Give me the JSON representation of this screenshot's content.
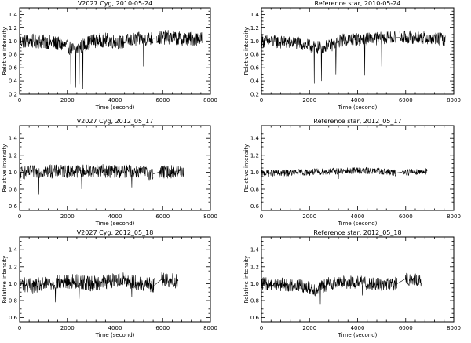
{
  "chart_data": [
    {
      "type": "line",
      "title": "V2027 Cyg, 2010-05-24",
      "xlabel": "Time (second)",
      "ylabel": "Relative intensity",
      "xlim": [
        0,
        8000
      ],
      "ylim": [
        0.2,
        1.5
      ],
      "x_ticks": [
        0,
        2000,
        4000,
        6000,
        8000
      ],
      "y_ticks": [
        0.2,
        0.4,
        0.6,
        0.8,
        1.0,
        1.2,
        1.4
      ],
      "series": [
        {
          "segments": [
            [
              0,
              5600
            ],
            [
              5750,
              7650
            ]
          ],
          "center": [
            [
              0,
              1.0
            ],
            [
              500,
              1.0
            ],
            [
              1000,
              0.99
            ],
            [
              1500,
              0.97
            ],
            [
              2000,
              0.92
            ],
            [
              2300,
              0.86
            ],
            [
              2500,
              0.9
            ],
            [
              3000,
              1.0
            ],
            [
              3600,
              1.02
            ],
            [
              4200,
              0.98
            ],
            [
              4800,
              1.02
            ],
            [
              5600,
              1.04
            ],
            [
              6200,
              1.06
            ],
            [
              6800,
              1.03
            ],
            [
              7650,
              1.04
            ]
          ],
          "amplitude": 0.11,
          "dips": [
            [
              1050,
              0.4
            ],
            [
              2150,
              0.35
            ],
            [
              2350,
              0.3
            ],
            [
              2500,
              0.35
            ],
            [
              2650,
              0.28
            ],
            [
              4350,
              0.58
            ],
            [
              5200,
              0.62
            ]
          ]
        }
      ]
    },
    {
      "type": "line",
      "title": "Reference star, 2010-05-24",
      "xlabel": "Time (second)",
      "ylabel": "Relative intensity",
      "xlim": [
        0,
        8000
      ],
      "ylim": [
        0.2,
        1.5
      ],
      "x_ticks": [
        0,
        2000,
        4000,
        6000,
        8000
      ],
      "y_ticks": [
        0.2,
        0.4,
        0.6,
        0.8,
        1.0,
        1.2,
        1.4
      ],
      "series": [
        {
          "segments": [
            [
              0,
              5600
            ],
            [
              5750,
              7650
            ]
          ],
          "center": [
            [
              0,
              1.0
            ],
            [
              1500,
              0.97
            ],
            [
              2300,
              0.9
            ],
            [
              2800,
              0.92
            ],
            [
              3400,
              1.02
            ],
            [
              4400,
              1.03
            ],
            [
              5500,
              1.05
            ],
            [
              6200,
              1.06
            ],
            [
              7000,
              1.04
            ],
            [
              7650,
              1.03
            ]
          ],
          "amplitude": 0.1,
          "dips": [
            [
              2200,
              0.36
            ],
            [
              2500,
              0.4
            ],
            [
              3100,
              0.5
            ],
            [
              4300,
              0.48
            ],
            [
              5000,
              0.62
            ]
          ]
        }
      ]
    },
    {
      "type": "line",
      "title": "V2027 Cyg, 2012_05_17",
      "xlabel": "Time (second)",
      "ylabel": "Relative intensity",
      "xlim": [
        0,
        8000
      ],
      "ylim": [
        0.55,
        1.55
      ],
      "x_ticks": [
        0,
        2000,
        4000,
        6000,
        8000
      ],
      "y_ticks": [
        0.6,
        0.8,
        1.0,
        1.2,
        1.4
      ],
      "series": [
        {
          "segments": [
            [
              0,
              5600
            ],
            [
              5850,
              6900
            ]
          ],
          "center": [
            [
              0,
              0.99
            ],
            [
              1000,
              1.01
            ],
            [
              2000,
              1.01
            ],
            [
              3000,
              1.02
            ],
            [
              4000,
              1.01
            ],
            [
              5000,
              1.01
            ],
            [
              5600,
              0.98
            ],
            [
              5850,
              1.0
            ],
            [
              6900,
              1.01
            ]
          ],
          "amplitude": 0.08,
          "dips": [
            [
              450,
              0.68
            ],
            [
              800,
              0.74
            ],
            [
              2600,
              0.8
            ],
            [
              4700,
              0.82
            ]
          ]
        }
      ]
    },
    {
      "type": "line",
      "title": "Reference star, 2012_05_17",
      "xlabel": "Time (second)",
      "ylabel": "Relative intensity",
      "xlim": [
        0,
        8000
      ],
      "ylim": [
        0.55,
        1.55
      ],
      "x_ticks": [
        0,
        2000,
        4000,
        6000,
        8000
      ],
      "y_ticks": [
        0.6,
        0.8,
        1.0,
        1.2,
        1.4
      ],
      "series": [
        {
          "segments": [
            [
              0,
              5600
            ],
            [
              5850,
              6900
            ]
          ],
          "center": [
            [
              0,
              0.99
            ],
            [
              1000,
              0.99
            ],
            [
              2000,
              1.0
            ],
            [
              3000,
              1.01
            ],
            [
              4000,
              1.02
            ],
            [
              5000,
              1.01
            ],
            [
              5600,
              0.99
            ],
            [
              5850,
              1.0
            ],
            [
              6900,
              1.01
            ]
          ],
          "amplitude": 0.04,
          "dips": [
            [
              900,
              0.89
            ],
            [
              3200,
              0.92
            ]
          ]
        }
      ]
    },
    {
      "type": "line",
      "title": "V2027 Cyg, 2012_05_18",
      "xlabel": "Time (second)",
      "ylabel": "Relative intensity",
      "xlim": [
        0,
        8000
      ],
      "ylim": [
        0.55,
        1.55
      ],
      "x_ticks": [
        0,
        2000,
        4000,
        6000,
        8000
      ],
      "y_ticks": [
        0.6,
        0.8,
        1.0,
        1.2,
        1.4
      ],
      "series": [
        {
          "segments": [
            [
              0,
              5650
            ],
            [
              5950,
              6650
            ]
          ],
          "center": [
            [
              0,
              1.0
            ],
            [
              600,
              0.97
            ],
            [
              1200,
              1.0
            ],
            [
              1800,
              1.02
            ],
            [
              2400,
              1.03
            ],
            [
              3000,
              1.0
            ],
            [
              3600,
              1.02
            ],
            [
              4300,
              1.06
            ],
            [
              5000,
              1.0
            ],
            [
              5650,
              0.98
            ],
            [
              5950,
              1.05
            ],
            [
              6650,
              1.03
            ]
          ],
          "amplitude": 0.09,
          "dips": [
            [
              1500,
              0.78
            ],
            [
              2500,
              0.82
            ],
            [
              4700,
              0.84
            ]
          ]
        }
      ]
    },
    {
      "type": "line",
      "title": "Reference star, 2012_05_18",
      "xlabel": "Time (second)",
      "ylabel": "Relative intensity",
      "xlim": [
        0,
        8000
      ],
      "ylim": [
        0.55,
        1.55
      ],
      "x_ticks": [
        0,
        2000,
        4000,
        6000,
        8000
      ],
      "y_ticks": [
        0.6,
        0.8,
        1.0,
        1.2,
        1.4
      ],
      "series": [
        {
          "segments": [
            [
              0,
              5650
            ],
            [
              5950,
              6650
            ]
          ],
          "center": [
            [
              0,
              1.0
            ],
            [
              800,
              0.99
            ],
            [
              1600,
              0.98
            ],
            [
              2300,
              0.93
            ],
            [
              2800,
              1.0
            ],
            [
              3500,
              1.02
            ],
            [
              4300,
              1.01
            ],
            [
              5000,
              0.99
            ],
            [
              5650,
              1.0
            ],
            [
              5950,
              1.05
            ],
            [
              6650,
              1.04
            ]
          ],
          "amplitude": 0.08,
          "dips": [
            [
              2450,
              0.76
            ],
            [
              4200,
              0.86
            ]
          ]
        }
      ]
    }
  ]
}
